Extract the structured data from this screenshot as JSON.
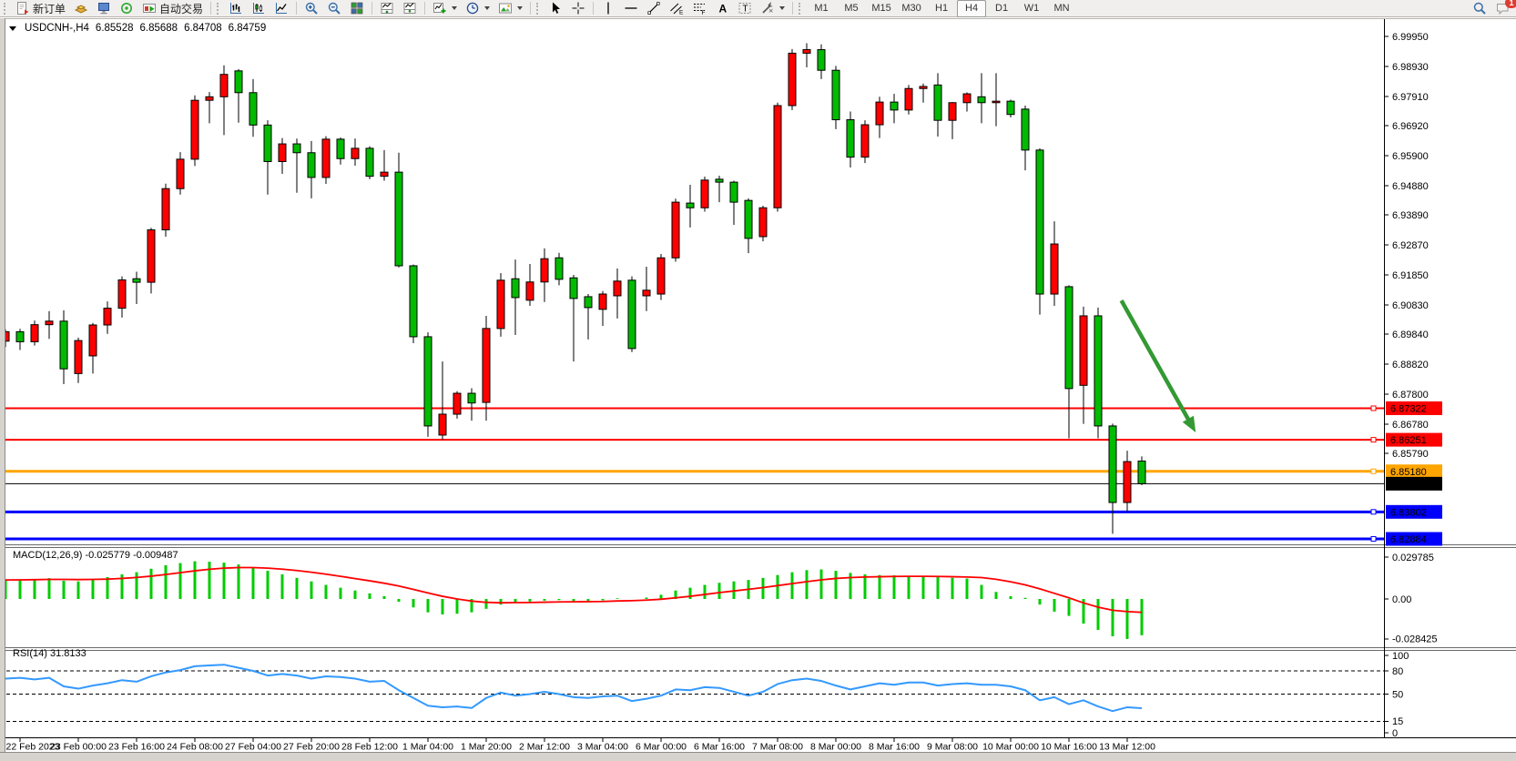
{
  "toolbar": {
    "new_order_label": "新订单",
    "autotrade_label": "自动交易",
    "glyphs": {
      "channel_e": "E",
      "fibo_f": "F",
      "text_a": "A",
      "label_t": "T"
    },
    "timeframes": [
      "M1",
      "M5",
      "M15",
      "M30",
      "H1",
      "H4",
      "D1",
      "W1",
      "MN"
    ],
    "active_timeframe": "H4",
    "notification_count": "1"
  },
  "symbol_info": {
    "symbol": "USDCNH-,H4",
    "open": "6.85528",
    "high": "6.85688",
    "low": "6.84708",
    "close": "6.84759"
  },
  "indicators": {
    "macd_label": "MACD(12,26,9) -0.025779 -0.009487",
    "rsi_label": "RSI(14) 31.8133"
  },
  "hlines": [
    {
      "price": 6.87322,
      "label": "6.87322",
      "color": "#FF0000",
      "width": 2
    },
    {
      "price": 6.86251,
      "label": "6.86251",
      "color": "#FF0000",
      "width": 2
    },
    {
      "price": 6.8518,
      "label": "6.85180",
      "color": "#FFA500",
      "width": 3
    },
    {
      "price": 6.84759,
      "label": "6.84759",
      "color": "#000000",
      "width": 1
    },
    {
      "price": 6.83802,
      "label": "6.83802",
      "color": "#0000FF",
      "width": 3
    },
    {
      "price": 6.82884,
      "label": "6.82884",
      "color": "#0000FF",
      "width": 3
    }
  ],
  "arrow_annotation": {
    "from": {
      "bar": 76.6,
      "price": 6.9098
    },
    "to": {
      "bar": 81.7,
      "price": 6.865
    },
    "color": "#339933"
  },
  "chart_data": {
    "type": "candlestick",
    "symbol": "USDCNH-",
    "timeframe": "H4",
    "up_color": "#FF0000",
    "down_color": "#00BB00",
    "wick_color": "#000000",
    "color_convention": "Chinese: red = bullish, green = bearish",
    "time_labels": [
      "22 Feb 2023",
      "23 Feb 00:00",
      "23 Feb 16:00",
      "24 Feb 08:00",
      "27 Feb 04:00",
      "27 Feb 20:00",
      "28 Feb 12:00",
      "1 Mar 04:00",
      "1 Mar 20:00",
      "2 Mar 12:00",
      "3 Mar 04:00",
      "6 Mar 00:00",
      "6 Mar 16:00",
      "7 Mar 08:00",
      "8 Mar 00:00",
      "8 Mar 16:00",
      "9 Mar 08:00",
      "10 Mar 00:00",
      "10 Mar 16:00",
      "13 Mar 12:00"
    ],
    "price_ticks": [
      "6.99950",
      "6.98930",
      "6.97910",
      "6.96920",
      "6.95900",
      "6.94880",
      "6.93890",
      "6.92870",
      "6.91850",
      "6.90830",
      "6.89840",
      "6.88820",
      "6.87800",
      "6.86780",
      "6.85790"
    ],
    "candles": [
      [
        6.896,
        6.9,
        6.894,
        6.8992
      ],
      [
        6.8992,
        6.9002,
        6.893,
        6.8958
      ],
      [
        6.8958,
        6.903,
        6.8945,
        6.9016
      ],
      [
        6.9016,
        6.9062,
        6.8968,
        6.9028
      ],
      [
        6.9028,
        6.9065,
        6.8814,
        6.8866
      ],
      [
        6.885,
        6.8972,
        6.8818,
        6.8962
      ],
      [
        6.891,
        6.9022,
        6.885,
        6.9015
      ],
      [
        6.9015,
        6.9095,
        6.8985,
        6.9072
      ],
      [
        6.9072,
        6.918,
        6.904,
        6.9168
      ],
      [
        6.9172,
        6.9196,
        6.9086,
        6.916
      ],
      [
        6.916,
        6.9345,
        6.9122,
        6.9338
      ],
      [
        6.9338,
        6.9495,
        6.9315,
        6.9478
      ],
      [
        6.9478,
        6.9602,
        6.9458,
        6.9578
      ],
      [
        6.9578,
        6.9795,
        6.9555,
        6.9778
      ],
      [
        6.9778,
        6.9806,
        6.97,
        6.979
      ],
      [
        6.979,
        6.9897,
        6.966,
        6.9866
      ],
      [
        6.9878,
        6.9884,
        6.9702,
        6.9804
      ],
      [
        6.9804,
        6.985,
        6.9654,
        6.9694
      ],
      [
        6.9694,
        6.971,
        6.9458,
        6.957
      ],
      [
        6.957,
        6.965,
        6.9528,
        6.963
      ],
      [
        6.963,
        6.9648,
        6.9464,
        6.96
      ],
      [
        6.96,
        6.964,
        6.9445,
        6.9516
      ],
      [
        6.9516,
        6.9656,
        6.9494,
        6.9646
      ],
      [
        6.9646,
        6.9652,
        6.956,
        6.958
      ],
      [
        6.958,
        6.9648,
        6.9556,
        6.9615
      ],
      [
        6.9615,
        6.9622,
        6.951,
        6.952
      ],
      [
        6.952,
        6.9609,
        6.9505,
        6.9534
      ],
      [
        6.9534,
        6.96,
        6.921,
        6.9216
      ],
      [
        6.9216,
        6.922,
        6.8953,
        6.8975
      ],
      [
        6.8975,
        6.899,
        6.8635,
        6.8672
      ],
      [
        6.8641,
        6.8891,
        6.8626,
        6.8712
      ],
      [
        6.8712,
        6.879,
        6.8697,
        6.8783
      ],
      [
        6.8783,
        6.88,
        6.869,
        6.875
      ],
      [
        6.8752,
        6.9046,
        6.869,
        6.9003
      ],
      [
        6.9003,
        6.9191,
        6.8975,
        6.9167
      ],
      [
        6.9172,
        6.9237,
        6.8981,
        6.9108
      ],
      [
        6.9099,
        6.9222,
        6.908,
        6.9161
      ],
      [
        6.9161,
        6.9275,
        6.9093,
        6.924
      ],
      [
        6.9243,
        6.926,
        6.915,
        6.917
      ],
      [
        6.9175,
        6.9185,
        6.8891,
        6.9105
      ],
      [
        6.9111,
        6.912,
        6.8966,
        6.9074
      ],
      [
        6.9068,
        6.913,
        6.9012,
        6.912
      ],
      [
        6.9114,
        6.9207,
        6.9037,
        6.9164
      ],
      [
        6.9167,
        6.918,
        6.8923,
        6.8935
      ],
      [
        6.9114,
        6.9213,
        6.9062,
        6.9133
      ],
      [
        6.912,
        6.9256,
        6.91,
        6.9243
      ],
      [
        6.9243,
        6.9444,
        6.923,
        6.9432
      ],
      [
        6.9429,
        6.9491,
        6.9346,
        6.9413
      ],
      [
        6.9413,
        6.9519,
        6.94,
        6.9507
      ],
      [
        6.951,
        6.9522,
        6.9432,
        6.95
      ],
      [
        6.95,
        6.9505,
        6.9355,
        6.9432
      ],
      [
        6.9438,
        6.9445,
        6.9259,
        6.9309
      ],
      [
        6.9315,
        6.942,
        6.9299,
        6.9413
      ],
      [
        6.9413,
        6.977,
        6.94,
        6.976
      ],
      [
        6.976,
        6.9952,
        6.9745,
        6.9938
      ],
      [
        6.9938,
        6.9972,
        6.989,
        6.995
      ],
      [
        6.995,
        6.9968,
        6.985,
        6.988
      ],
      [
        6.988,
        6.9895,
        6.968,
        6.9712
      ],
      [
        6.9712,
        6.974,
        6.955,
        6.9585
      ],
      [
        6.9585,
        6.971,
        6.9565,
        6.9695
      ],
      [
        6.9695,
        6.979,
        6.965,
        6.9772
      ],
      [
        6.9772,
        6.98,
        6.97,
        6.9745
      ],
      [
        6.9745,
        6.983,
        6.973,
        6.9818
      ],
      [
        6.9818,
        6.9835,
        6.977,
        6.9825
      ],
      [
        6.983,
        6.987,
        6.9655,
        6.971
      ],
      [
        6.971,
        6.9772,
        6.9646,
        6.977
      ],
      [
        6.977,
        6.9805,
        6.974,
        6.98
      ],
      [
        6.979,
        6.987,
        6.97,
        6.977
      ],
      [
        6.977,
        6.987,
        6.969,
        6.9775
      ],
      [
        6.9775,
        6.978,
        6.972,
        6.973
      ],
      [
        6.9748,
        6.976,
        6.954,
        6.9609
      ],
      [
        6.9609,
        6.9615,
        6.905,
        6.912
      ],
      [
        6.912,
        6.9367,
        6.908,
        6.929
      ],
      [
        6.9145,
        6.915,
        6.863,
        6.8799
      ],
      [
        6.881,
        6.9077,
        6.8679,
        6.9046
      ],
      [
        6.9046,
        6.9074,
        6.863,
        6.8672
      ],
      [
        6.8672,
        6.868,
        6.8306,
        6.8412
      ],
      [
        6.8412,
        6.8588,
        6.838,
        6.8551
      ],
      [
        6.85528,
        6.85688,
        6.84708,
        6.84759
      ]
    ],
    "macd": {
      "label": "MACD(12,26,9)",
      "macd_value": -0.025779,
      "signal_value": -0.009487,
      "histogram_color": "#00CC00",
      "signal_color": "#FF0000",
      "axis_ticks": [
        "0.029785",
        "0.00",
        "-0.028425"
      ],
      "histogram": [
        0.0135,
        0.0138,
        0.0142,
        0.0148,
        0.013,
        0.0125,
        0.014,
        0.0155,
        0.0175,
        0.019,
        0.0215,
        0.024,
        0.0255,
        0.0268,
        0.0265,
        0.0258,
        0.0245,
        0.0225,
        0.02,
        0.0175,
        0.015,
        0.0125,
        0.01,
        0.008,
        0.006,
        0.004,
        0.002,
        -0.002,
        -0.006,
        -0.0095,
        -0.011,
        -0.0105,
        -0.0095,
        -0.007,
        -0.004,
        -0.0025,
        -0.0018,
        -0.0012,
        -0.0008,
        -0.0015,
        -0.0018,
        -0.001,
        0.0005,
        0.0,
        0.001,
        0.003,
        0.006,
        0.008,
        0.01,
        0.0115,
        0.0125,
        0.0135,
        0.015,
        0.017,
        0.019,
        0.0205,
        0.021,
        0.02,
        0.0185,
        0.0175,
        0.017,
        0.0168,
        0.0165,
        0.016,
        0.0155,
        0.015,
        0.0145,
        0.01,
        0.005,
        0.002,
        0.0008,
        -0.004,
        -0.009,
        -0.012,
        -0.0175,
        -0.022,
        -0.0265,
        -0.028425,
        -0.025779
      ],
      "signal": [
        0.0135,
        0.0136,
        0.0137,
        0.0139,
        0.0139,
        0.0138,
        0.0139,
        0.0141,
        0.0146,
        0.0153,
        0.0162,
        0.0174,
        0.0187,
        0.02,
        0.0211,
        0.0219,
        0.0223,
        0.0223,
        0.0219,
        0.0212,
        0.0202,
        0.019,
        0.0176,
        0.0161,
        0.0145,
        0.0129,
        0.0112,
        0.0092,
        0.0068,
        0.0043,
        0.0019,
        0.0,
        -0.0015,
        -0.0024,
        -0.0027,
        -0.0026,
        -0.0025,
        -0.0023,
        -0.0021,
        -0.002,
        -0.0019,
        -0.0018,
        -0.0014,
        -0.0012,
        -0.0008,
        -0.0002,
        0.0008,
        0.0019,
        0.0032,
        0.0045,
        0.0057,
        0.0069,
        0.0081,
        0.0095,
        0.0109,
        0.0123,
        0.0136,
        0.0146,
        0.0152,
        0.0156,
        0.0158,
        0.016,
        0.0161,
        0.0161,
        0.016,
        0.0158,
        0.0156,
        0.0152,
        0.014,
        0.0122,
        0.01,
        0.0072,
        0.004,
        0.0008,
        -0.0028,
        -0.0058,
        -0.008,
        -0.009,
        -0.009487
      ]
    },
    "rsi": {
      "label": "RSI(14)",
      "value": 31.8133,
      "color": "#3399FF",
      "levels": [
        80,
        50,
        15
      ],
      "axis_ticks": [
        "100",
        "80",
        "50",
        "15",
        "0"
      ],
      "values": [
        70,
        71,
        69,
        71,
        60,
        57,
        61,
        64,
        68,
        66,
        73,
        78,
        81,
        86,
        87,
        88,
        84,
        80,
        74,
        76,
        74,
        70,
        73,
        72,
        70,
        66,
        67,
        55,
        45,
        35,
        33,
        34,
        32,
        45,
        52,
        48,
        50,
        53,
        50,
        46,
        45,
        47,
        48,
        41,
        44,
        48,
        56,
        55,
        59,
        58,
        53,
        48,
        53,
        63,
        68,
        70,
        67,
        61,
        56,
        60,
        64,
        62,
        65,
        65,
        61,
        63,
        64,
        62,
        62,
        60,
        55,
        42,
        46,
        37,
        42,
        34,
        28,
        33,
        31.8133
      ]
    }
  }
}
